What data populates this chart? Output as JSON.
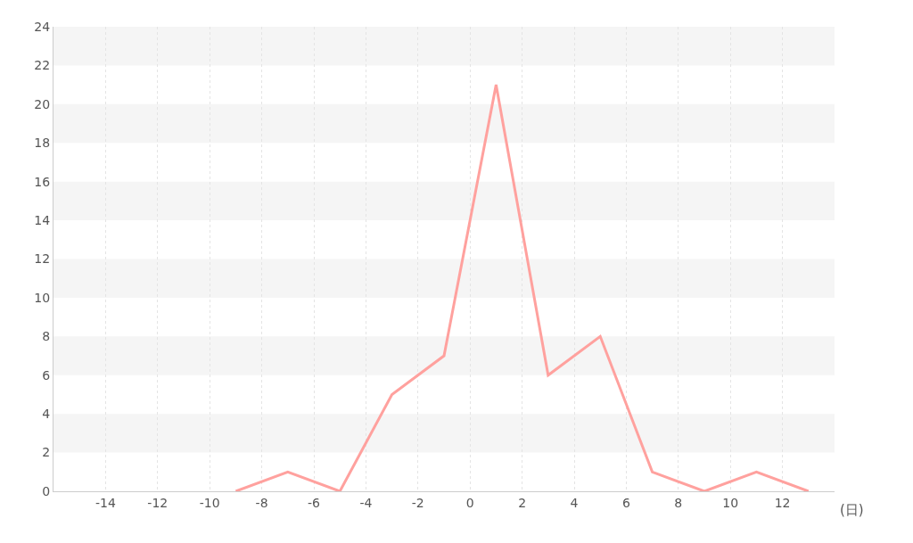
{
  "chart_data": {
    "type": "line",
    "xlabel": "(日)",
    "x": [
      -9,
      -7,
      -5,
      -3,
      -1,
      1,
      3,
      5,
      7,
      9,
      11,
      13
    ],
    "series": [
      {
        "color": "#ffa19e",
        "values": [
          0,
          1,
          0,
          5,
          7,
          21,
          6,
          8,
          1,
          0,
          1,
          0
        ]
      }
    ],
    "xlim": [
      -16,
      14
    ],
    "xticks": [
      -14,
      -12,
      -10,
      -8,
      -6,
      -4,
      -2,
      0,
      2,
      4,
      6,
      8,
      10,
      12
    ],
    "ylim": [
      0,
      24
    ],
    "yticks": [
      0,
      2,
      4,
      6,
      8,
      10,
      12,
      14,
      16,
      18,
      20,
      22,
      24
    ],
    "grid": true,
    "marker": "none",
    "line_style": "solid"
  }
}
